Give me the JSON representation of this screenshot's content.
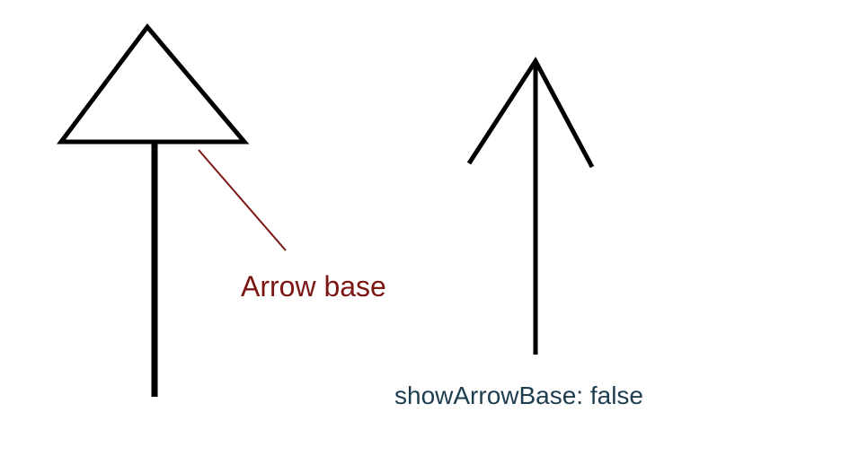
{
  "labels": {
    "arrow_base": "Arrow base",
    "show_arrow_base_false": "showArrowBase: false"
  },
  "colors": {
    "background": "#ffffff",
    "stroke": "#000000",
    "annotation": "#7b1613",
    "caption": "#1e3d4f"
  }
}
